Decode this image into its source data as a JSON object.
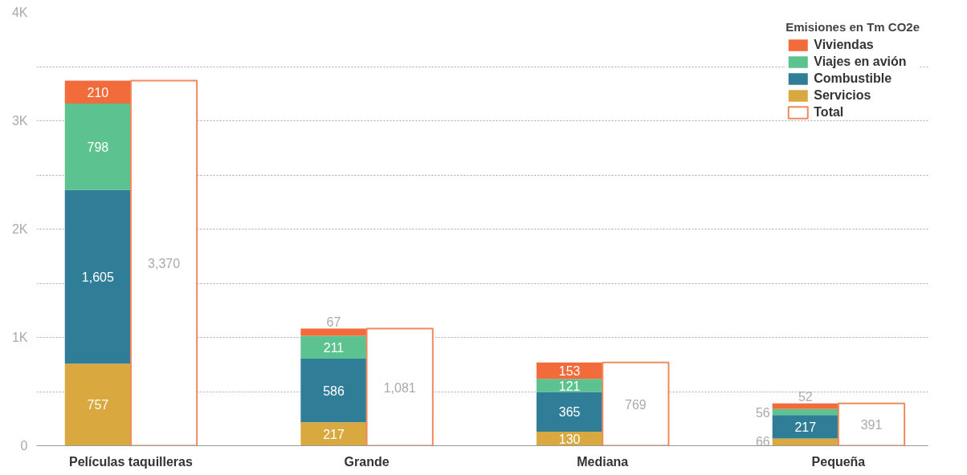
{
  "chart_data": {
    "type": "bar",
    "stacked": true,
    "legend_title": "Emisiones en Tm CO2e",
    "categories": [
      "Películas taquilleras",
      "Grande",
      "Mediana",
      "Pequeña"
    ],
    "series": [
      {
        "name": "Servicios",
        "color": "#d9a93f",
        "values": [
          757,
          217,
          130,
          66
        ],
        "value_labels": [
          "757",
          "217",
          "130",
          "66"
        ]
      },
      {
        "name": "Combustible",
        "color": "#2f7d97",
        "values": [
          1605,
          586,
          365,
          217
        ],
        "value_labels": [
          "1,605",
          "586",
          "365",
          "217"
        ]
      },
      {
        "name": "Viajes en avión",
        "color": "#5cc28f",
        "values": [
          798,
          211,
          121,
          56
        ],
        "value_labels": [
          "798",
          "211",
          "121",
          "56"
        ]
      },
      {
        "name": "Viviendas",
        "color": "#f26b3a",
        "values": [
          210,
          67,
          153,
          52
        ],
        "value_labels": [
          "210",
          "67",
          "153",
          "52"
        ]
      },
      {
        "name": "Total",
        "color": "#f08a5d",
        "axis": "y2",
        "values": [
          3370,
          1081,
          769,
          391
        ],
        "value_labels": [
          "3,370",
          "1,081",
          "769",
          "391"
        ]
      }
    ],
    "ylim": [
      0,
      4000
    ],
    "yticks": [
      0,
      {
        "value": 500,
        "label": null
      },
      {
        "value": 1000,
        "label": "1K"
      },
      {
        "value": 1500,
        "label": null
      },
      {
        "value": 2000,
        "label": "2K"
      },
      {
        "value": 2500,
        "label": null
      },
      {
        "value": 3000,
        "label": "3K"
      },
      {
        "value": 3500,
        "label": null
      },
      {
        "value": 4000,
        "label": "4K"
      }
    ],
    "grid": "y",
    "legend": "top right"
  }
}
